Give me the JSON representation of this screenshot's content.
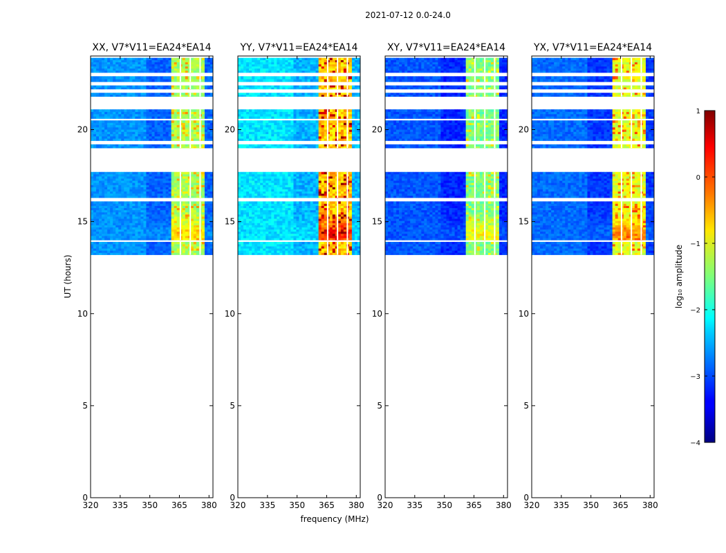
{
  "figure": {
    "suptitle": "2021-07-12 0.0-24.0",
    "colorbar_label": "log₁₀ amplitude",
    "colors": {
      "background": "#ffffff",
      "axes": "#000000",
      "flagged": "#ffffff"
    }
  },
  "chart_data": {
    "type": "heatmap",
    "colormap": "jet",
    "xlabel": "frequency (MHz)",
    "ylabel": "UT (hours)",
    "xlim": [
      320,
      382
    ],
    "ylim": [
      0,
      24
    ],
    "xticks": [
      320,
      335,
      350,
      365,
      380
    ],
    "yticks": [
      0,
      5,
      10,
      15,
      20
    ],
    "colorbar": {
      "min": -4,
      "max": 1,
      "ticks": [
        -4,
        -3,
        -2,
        -1,
        0,
        1
      ],
      "tick_labels": [
        "−4",
        "−3",
        "−2",
        "−1",
        "0",
        "1"
      ]
    },
    "panels": [
      {
        "title": "XX, V7*V11=EA24*EA14",
        "bg": -2.9,
        "band": -1.3,
        "peak": -0.7,
        "noise": 0.35
      },
      {
        "title": "YY, V7*V11=EA24*EA14",
        "bg": -2.5,
        "band": -0.6,
        "peak": 0.6,
        "noise": 0.45
      },
      {
        "title": "XY, V7*V11=EA24*EA14",
        "bg": -3.2,
        "band": -1.5,
        "peak": -1.0,
        "noise": 0.35
      },
      {
        "title": "YX, V7*V11=EA24*EA14",
        "bg": -3.1,
        "band": -1.0,
        "peak": -0.3,
        "noise": 0.35
      }
    ],
    "valid_time_ranges_hours": [
      [
        13.2,
        13.9
      ],
      [
        14.0,
        16.1
      ],
      [
        16.3,
        17.7
      ],
      [
        19.0,
        19.2
      ],
      [
        19.4,
        20.5
      ],
      [
        20.6,
        21.1
      ],
      [
        21.8,
        22.0
      ],
      [
        22.2,
        22.4
      ],
      [
        22.6,
        22.9
      ],
      [
        23.1,
        23.9
      ]
    ],
    "bright_band_mhz": [
      361,
      378
    ],
    "channel_gap_centers_mhz": [
      365.5,
      370.5,
      375.5
    ]
  }
}
